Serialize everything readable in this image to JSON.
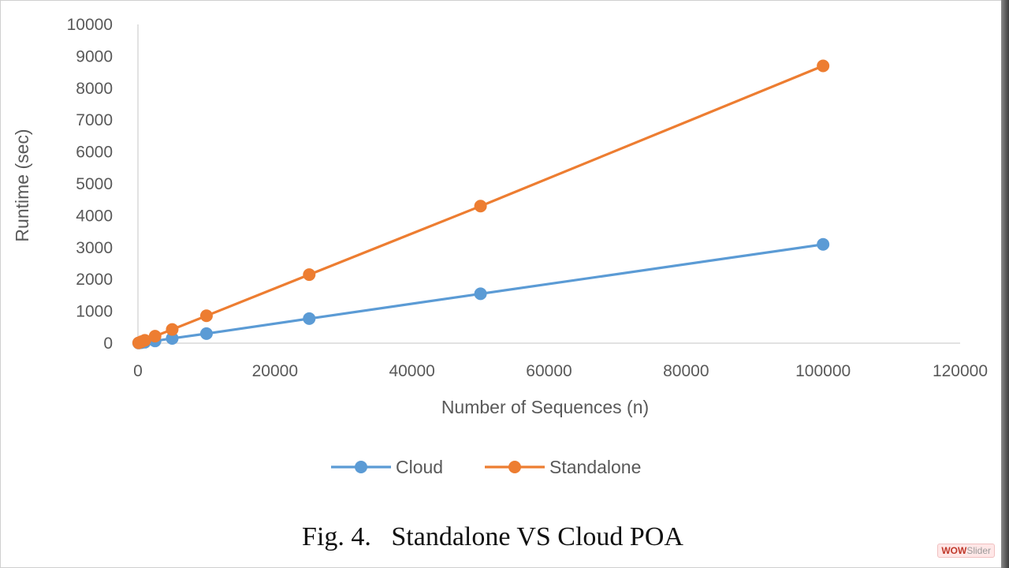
{
  "chart_data": {
    "type": "line",
    "title": "",
    "xlabel": "Number of Sequences (n)",
    "ylabel": "Runtime (sec)",
    "xlim": [
      0,
      120000
    ],
    "ylim": [
      0,
      10000
    ],
    "xticks": [
      "0",
      "20000",
      "40000",
      "60000",
      "80000",
      "100000",
      "120000"
    ],
    "yticks": [
      "0",
      "1000",
      "2000",
      "3000",
      "4000",
      "5000",
      "6000",
      "7000",
      "8000",
      "9000",
      "10000"
    ],
    "grid": false,
    "legend_position": "bottom",
    "series": [
      {
        "name": "Cloud",
        "color": "#5b9bd5",
        "x": [
          100,
          500,
          1000,
          2500,
          5000,
          10000,
          25000,
          50000,
          100000
        ],
        "y": [
          5,
          15,
          30,
          70,
          150,
          300,
          770,
          1550,
          3100
        ]
      },
      {
        "name": "Standalone",
        "color": "#ed7d31",
        "x": [
          100,
          500,
          1000,
          2500,
          5000,
          10000,
          25000,
          50000,
          100000
        ],
        "y": [
          10,
          45,
          90,
          220,
          430,
          860,
          2150,
          4300,
          8700
        ]
      }
    ]
  },
  "caption": "Fig. 4.   Standalone VS Cloud POA",
  "watermark": {
    "part1": "WOW",
    "part2": "Slider"
  }
}
